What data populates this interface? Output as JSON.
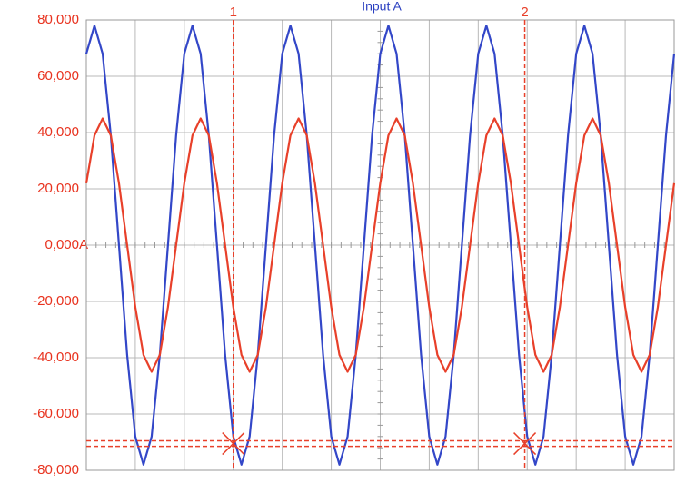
{
  "chart_data": {
    "type": "line",
    "title": "Input A",
    "ylim": [
      -80000,
      80000
    ],
    "yticks": [
      {
        "value": 80000,
        "label": "80,000"
      },
      {
        "value": 60000,
        "label": "60,000"
      },
      {
        "value": 40000,
        "label": "40,000"
      },
      {
        "value": 20000,
        "label": "20,000"
      },
      {
        "value": 0,
        "label": "0,000A"
      },
      {
        "value": -20000,
        "label": "-20,000"
      },
      {
        "value": -40000,
        "label": "-40,000"
      },
      {
        "value": -60000,
        "label": "-60,000"
      },
      {
        "value": -80000,
        "label": "-80,000"
      }
    ],
    "xlim": [
      0,
      72
    ],
    "grid": true,
    "series": [
      {
        "color": "#3347c8",
        "values": [
          68000,
          78000,
          68000,
          39000,
          0,
          -39000,
          -68000,
          -78000,
          -68000,
          -39000,
          0,
          39000,
          68000,
          78000,
          68000,
          39000,
          0,
          -39000,
          -68000,
          -78000,
          -68000,
          -39000,
          0,
          39000,
          68000,
          78000,
          68000,
          39000,
          0,
          -39000,
          -68000,
          -78000,
          -68000,
          -39000,
          0,
          39000,
          68000,
          78000,
          68000,
          39000,
          0,
          -39000,
          -68000,
          -78000,
          -68000,
          -39000,
          0,
          39000,
          68000,
          78000,
          68000,
          39000,
          0,
          -39000,
          -68000,
          -78000,
          -68000,
          -39000,
          0,
          39000,
          68000,
          78000,
          68000,
          39000,
          0,
          -39000,
          -68000,
          -78000,
          -68000,
          -39000,
          0,
          39000,
          68000
        ]
      },
      {
        "color": "#e8402a",
        "values": [
          22000,
          39000,
          45000,
          39000,
          22000,
          0,
          -22000,
          -39000,
          -45000,
          -39000,
          -22000,
          0,
          22000,
          39000,
          45000,
          39000,
          22000,
          0,
          -22000,
          -39000,
          -45000,
          -39000,
          -22000,
          0,
          22000,
          39000,
          45000,
          39000,
          22000,
          0,
          -22000,
          -39000,
          -45000,
          -39000,
          -22000,
          0,
          22000,
          39000,
          45000,
          39000,
          22000,
          0,
          -22000,
          -39000,
          -45000,
          -39000,
          -22000,
          0,
          22000,
          39000,
          45000,
          39000,
          22000,
          0,
          -22000,
          -39000,
          -45000,
          -39000,
          -22000,
          0,
          22000,
          39000,
          45000,
          39000,
          22000,
          0,
          -22000,
          -39000,
          -45000,
          -39000,
          -22000,
          0,
          22000
        ]
      }
    ],
    "cursors": [
      {
        "label": "1",
        "x": 18
      },
      {
        "label": "2",
        "x": 53.7
      }
    ],
    "hcursors": [
      -69500,
      -71500
    ],
    "cursor_color": "#e8402a"
  }
}
